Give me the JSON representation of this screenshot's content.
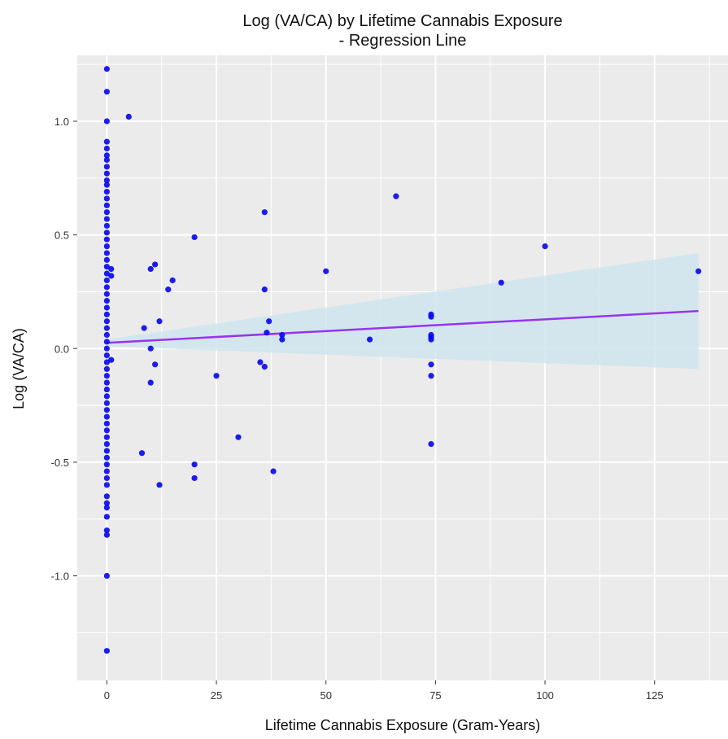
{
  "chart_data": {
    "type": "scatter",
    "title": "Log (VA/CA) by Lifetime Cannabis Exposure",
    "subtitle": "- Regression Line",
    "xlabel": "Lifetime Cannabis Exposure (Gram-Years)",
    "ylabel": "Log (VA/CA)",
    "xlim": [
      -6.75,
      141.75
    ],
    "ylim": [
      -1.46,
      1.29
    ],
    "x_ticks": [
      0,
      25,
      50,
      75,
      100,
      125
    ],
    "x_tick_labels": [
      "0",
      "25",
      "50",
      "75",
      "100",
      "125"
    ],
    "y_ticks": [
      -1.0,
      -0.5,
      0.0,
      0.5,
      1.0
    ],
    "y_tick_labels": [
      "-1.0",
      "-0.5",
      "0.0",
      "0.5",
      "1.0"
    ],
    "grid": true,
    "legend": "none",
    "colors": {
      "panel": "#ebebeb",
      "grid": "#ffffff",
      "point": "#0a0aee",
      "line": "#9933ee",
      "band": "#cfe5ef"
    },
    "regression": {
      "x": [
        0,
        135
      ],
      "y": [
        0.025,
        0.165
      ],
      "ci_lower": [
        0.01,
        -0.09
      ],
      "ci_upper": [
        0.04,
        0.42
      ]
    },
    "points": [
      {
        "x": 0,
        "y": 1.23
      },
      {
        "x": 0,
        "y": 1.13
      },
      {
        "x": 0,
        "y": 1.0
      },
      {
        "x": 0,
        "y": 0.91
      },
      {
        "x": 0,
        "y": 0.88
      },
      {
        "x": 0,
        "y": 0.85
      },
      {
        "x": 0,
        "y": 0.83
      },
      {
        "x": 0,
        "y": 0.8
      },
      {
        "x": 0,
        "y": 0.77
      },
      {
        "x": 0,
        "y": 0.74
      },
      {
        "x": 0,
        "y": 0.72
      },
      {
        "x": 0,
        "y": 0.69
      },
      {
        "x": 0,
        "y": 0.66
      },
      {
        "x": 0,
        "y": 0.63
      },
      {
        "x": 0,
        "y": 0.6
      },
      {
        "x": 0,
        "y": 0.57
      },
      {
        "x": 0,
        "y": 0.54
      },
      {
        "x": 0,
        "y": 0.51
      },
      {
        "x": 0,
        "y": 0.48
      },
      {
        "x": 0,
        "y": 0.45
      },
      {
        "x": 0,
        "y": 0.42
      },
      {
        "x": 0,
        "y": 0.39
      },
      {
        "x": 0,
        "y": 0.36
      },
      {
        "x": 0,
        "y": 0.33
      },
      {
        "x": 0,
        "y": 0.3
      },
      {
        "x": 0,
        "y": 0.27
      },
      {
        "x": 0,
        "y": 0.24
      },
      {
        "x": 0,
        "y": 0.21
      },
      {
        "x": 0,
        "y": 0.18
      },
      {
        "x": 0,
        "y": 0.15
      },
      {
        "x": 0,
        "y": 0.12
      },
      {
        "x": 0,
        "y": 0.09
      },
      {
        "x": 0,
        "y": 0.06
      },
      {
        "x": 0,
        "y": 0.03
      },
      {
        "x": 0,
        "y": 0.0
      },
      {
        "x": 0,
        "y": -0.03
      },
      {
        "x": 0,
        "y": -0.06
      },
      {
        "x": 0,
        "y": -0.09
      },
      {
        "x": 0,
        "y": -0.12
      },
      {
        "x": 0,
        "y": -0.15
      },
      {
        "x": 0,
        "y": -0.18
      },
      {
        "x": 0,
        "y": -0.21
      },
      {
        "x": 0,
        "y": -0.24
      },
      {
        "x": 0,
        "y": -0.27
      },
      {
        "x": 0,
        "y": -0.3
      },
      {
        "x": 0,
        "y": -0.33
      },
      {
        "x": 0,
        "y": -0.36
      },
      {
        "x": 0,
        "y": -0.39
      },
      {
        "x": 0,
        "y": -0.42
      },
      {
        "x": 0,
        "y": -0.45
      },
      {
        "x": 0,
        "y": -0.48
      },
      {
        "x": 0,
        "y": -0.51
      },
      {
        "x": 0,
        "y": -0.54
      },
      {
        "x": 0,
        "y": -0.57
      },
      {
        "x": 0,
        "y": -0.6
      },
      {
        "x": 0,
        "y": -0.65
      },
      {
        "x": 0,
        "y": -0.68
      },
      {
        "x": 0,
        "y": -0.7
      },
      {
        "x": 0,
        "y": -0.74
      },
      {
        "x": 0,
        "y": -0.8
      },
      {
        "x": 0,
        "y": -0.82
      },
      {
        "x": 0,
        "y": -1.0
      },
      {
        "x": 0,
        "y": -1.33
      },
      {
        "x": 1,
        "y": 0.35
      },
      {
        "x": 1,
        "y": 0.32
      },
      {
        "x": 1,
        "y": -0.05
      },
      {
        "x": 5,
        "y": 1.02
      },
      {
        "x": 8,
        "y": -0.46
      },
      {
        "x": 8.5,
        "y": 0.09
      },
      {
        "x": 10,
        "y": 0.35
      },
      {
        "x": 10,
        "y": 0.0
      },
      {
        "x": 10,
        "y": -0.15
      },
      {
        "x": 11,
        "y": 0.37
      },
      {
        "x": 11,
        "y": -0.07
      },
      {
        "x": 12,
        "y": 0.12
      },
      {
        "x": 12,
        "y": -0.6
      },
      {
        "x": 14,
        "y": 0.26
      },
      {
        "x": 15,
        "y": 0.3
      },
      {
        "x": 20,
        "y": 0.49
      },
      {
        "x": 20,
        "y": -0.51
      },
      {
        "x": 20,
        "y": -0.57
      },
      {
        "x": 25,
        "y": -0.12
      },
      {
        "x": 30,
        "y": -0.39
      },
      {
        "x": 35,
        "y": -0.06
      },
      {
        "x": 36,
        "y": 0.6
      },
      {
        "x": 36,
        "y": 0.26
      },
      {
        "x": 36,
        "y": -0.08
      },
      {
        "x": 36.5,
        "y": 0.07
      },
      {
        "x": 37,
        "y": 0.12
      },
      {
        "x": 38,
        "y": -0.54
      },
      {
        "x": 40,
        "y": 0.06
      },
      {
        "x": 40,
        "y": 0.04
      },
      {
        "x": 50,
        "y": 0.34
      },
      {
        "x": 60,
        "y": 0.04
      },
      {
        "x": 66,
        "y": 0.67
      },
      {
        "x": 74,
        "y": 0.15
      },
      {
        "x": 74,
        "y": 0.14
      },
      {
        "x": 74,
        "y": 0.06
      },
      {
        "x": 74,
        "y": 0.05
      },
      {
        "x": 74,
        "y": 0.04
      },
      {
        "x": 74,
        "y": -0.07
      },
      {
        "x": 74,
        "y": -0.12
      },
      {
        "x": 74,
        "y": -0.42
      },
      {
        "x": 90,
        "y": 0.29
      },
      {
        "x": 100,
        "y": 0.45
      },
      {
        "x": 135,
        "y": 0.34
      }
    ]
  }
}
